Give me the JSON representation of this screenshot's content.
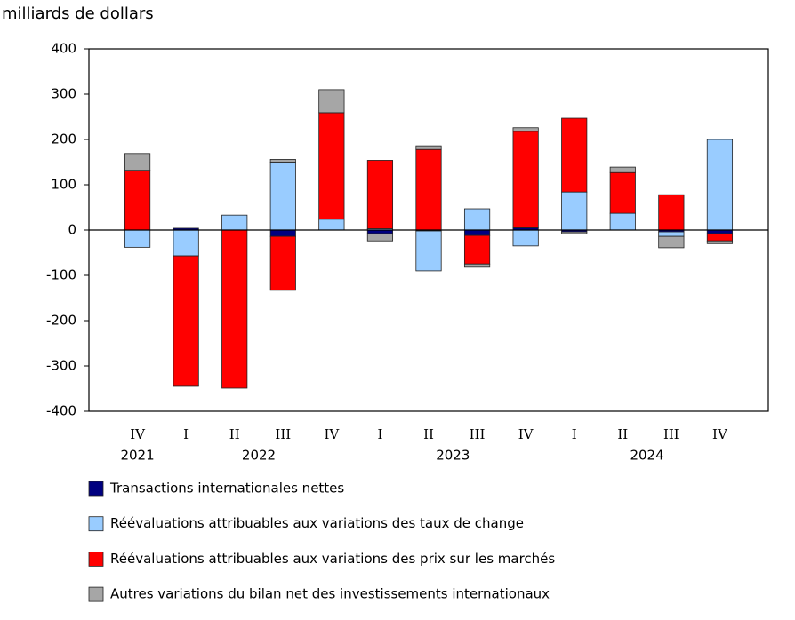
{
  "chart_data": {
    "type": "stacked-bar",
    "y_axis_title": "milliards de dollars",
    "categories": [
      "IV",
      "I",
      "II",
      "III",
      "IV",
      "I",
      "II",
      "III",
      "IV",
      "I",
      "II",
      "III",
      "IV"
    ],
    "years": [
      "2021",
      "2022",
      "2022",
      "2022",
      "2022",
      "2023",
      "2023",
      "2023",
      "2023",
      "2024",
      "2024",
      "2024",
      "2024"
    ],
    "series": [
      {
        "name": "Transactions internationales nettes",
        "color": "#000080",
        "values": [
          0,
          4,
          0,
          -14,
          0,
          -8,
          -2,
          -12,
          5,
          -4,
          0,
          -4,
          -8
        ]
      },
      {
        "name": "Réévaluations attribuables aux variations des taux de change",
        "color": "#99ccff",
        "values": [
          -38,
          -57,
          33,
          150,
          24,
          3,
          -88,
          47,
          -35,
          84,
          37,
          -10,
          200
        ]
      },
      {
        "name": "Réévaluations attribuables aux variations des prix sur les marchés",
        "color": "#ff0000",
        "values": [
          132,
          -286,
          -349,
          -119,
          235,
          151,
          178,
          -63,
          213,
          163,
          90,
          78,
          -16
        ]
      },
      {
        "name": "Autres variations du bilan net des investissements internationaux",
        "color": "#a6a6a6",
        "values": [
          37,
          -2,
          0,
          6,
          51,
          -16,
          8,
          -7,
          8,
          -4,
          12,
          -25,
          -6
        ]
      }
    ],
    "ylim": [
      -400,
      400
    ],
    "yticks": [
      -400,
      -300,
      -200,
      -100,
      0,
      100,
      200,
      300,
      400
    ]
  }
}
